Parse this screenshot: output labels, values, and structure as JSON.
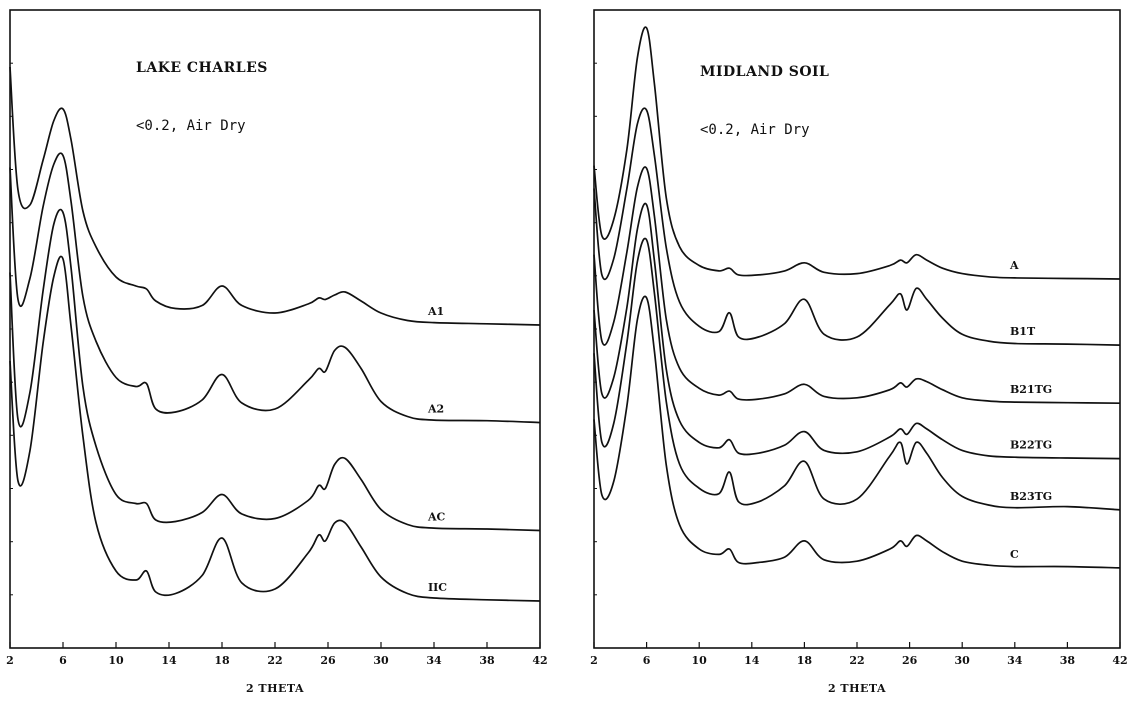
{
  "chart_data": [
    {
      "type": "line",
      "title": "LAKE CHARLES",
      "subtitle": "<0.2, Air Dry",
      "xlabel": "2 THETA",
      "ylabel": "",
      "xlim": [
        2,
        42
      ],
      "x_ticks": [
        2,
        6,
        10,
        14,
        18,
        22,
        26,
        30,
        34,
        38,
        42
      ],
      "grid": false,
      "y_units": "relative intensity",
      "series": [
        {
          "name": "A1",
          "baseline": 0.0,
          "x": [
            2,
            2.6,
            3.5,
            4.5,
            5.3,
            6.0,
            6.6,
            7.5,
            8.5,
            10,
            11.5,
            12.3,
            13,
            14.5,
            16.5,
            18,
            19.5,
            22,
            24.5,
            25.3,
            25.8,
            26.5,
            27.3,
            28.5,
            30,
            32,
            34,
            38,
            42
          ],
          "y": [
            0.86,
            0.45,
            0.4,
            0.55,
            0.68,
            0.72,
            0.62,
            0.38,
            0.26,
            0.16,
            0.13,
            0.12,
            0.08,
            0.055,
            0.065,
            0.13,
            0.065,
            0.04,
            0.07,
            0.09,
            0.085,
            0.1,
            0.11,
            0.08,
            0.04,
            0.015,
            0.008,
            0.004,
            0.0
          ]
        },
        {
          "name": "A2",
          "baseline": -0.325,
          "x": [
            2,
            2.6,
            3.5,
            4.5,
            5.3,
            6.0,
            6.6,
            7.5,
            8.5,
            10,
            11.5,
            12.3,
            13,
            14.5,
            16.5,
            18,
            19.5,
            22,
            24.5,
            25.3,
            25.8,
            26.5,
            27.3,
            28.5,
            30,
            32,
            34,
            38,
            42
          ],
          "y": [
            0.85,
            0.41,
            0.48,
            0.72,
            0.86,
            0.89,
            0.74,
            0.42,
            0.27,
            0.15,
            0.12,
            0.13,
            0.045,
            0.035,
            0.075,
            0.16,
            0.065,
            0.045,
            0.14,
            0.18,
            0.17,
            0.24,
            0.25,
            0.18,
            0.07,
            0.02,
            0.008,
            0.006,
            0.0
          ]
        },
        {
          "name": "AC",
          "baseline": -0.685,
          "x": [
            2,
            2.6,
            3.5,
            4.5,
            5.3,
            6.0,
            6.6,
            7.5,
            8.5,
            10,
            11.5,
            12.3,
            13,
            14.5,
            16.5,
            18,
            19.5,
            22,
            24.5,
            25.3,
            25.8,
            26.5,
            27.3,
            28.5,
            30,
            32,
            34,
            38,
            42
          ],
          "y": [
            0.86,
            0.37,
            0.46,
            0.8,
            1.02,
            1.06,
            0.88,
            0.48,
            0.28,
            0.12,
            0.09,
            0.09,
            0.035,
            0.03,
            0.06,
            0.12,
            0.055,
            0.04,
            0.1,
            0.15,
            0.14,
            0.22,
            0.24,
            0.17,
            0.07,
            0.02,
            0.008,
            0.005,
            0.0
          ]
        },
        {
          "name": "IIC",
          "baseline": -0.92,
          "x": [
            2,
            2.6,
            3.5,
            4.5,
            5.3,
            6.0,
            6.6,
            7.5,
            8.5,
            10,
            11.5,
            12.3,
            13,
            14.5,
            16.5,
            18,
            19.5,
            22,
            24.5,
            25.3,
            25.8,
            26.5,
            27.3,
            28.5,
            30,
            32,
            34,
            38,
            42
          ],
          "y": [
            0.8,
            0.4,
            0.5,
            0.86,
            1.08,
            1.14,
            0.92,
            0.55,
            0.26,
            0.1,
            0.07,
            0.1,
            0.03,
            0.025,
            0.085,
            0.21,
            0.06,
            0.04,
            0.16,
            0.22,
            0.2,
            0.26,
            0.26,
            0.18,
            0.08,
            0.025,
            0.01,
            0.004,
            0.0
          ]
        }
      ]
    },
    {
      "type": "line",
      "title": "MIDLAND SOIL",
      "subtitle": "<0.2, Air Dry",
      "xlabel": "2 THETA",
      "ylabel": "",
      "xlim": [
        2,
        42
      ],
      "x_ticks": [
        2,
        6,
        10,
        14,
        18,
        22,
        26,
        30,
        34,
        38,
        42
      ],
      "grid": false,
      "y_units": "relative intensity",
      "series": [
        {
          "name": "A",
          "baseline": 0.0,
          "x": [
            2,
            2.6,
            3.5,
            4.5,
            5.3,
            6.0,
            6.6,
            7.5,
            8.5,
            10,
            11.5,
            12.3,
            13,
            14.5,
            16.5,
            18,
            19.5,
            22,
            24.5,
            25.3,
            25.8,
            26.5,
            27.3,
            28.5,
            30,
            32,
            34,
            38,
            42
          ],
          "y": [
            0.42,
            0.16,
            0.22,
            0.48,
            0.82,
            0.93,
            0.72,
            0.3,
            0.12,
            0.05,
            0.03,
            0.04,
            0.015,
            0.015,
            0.03,
            0.06,
            0.025,
            0.02,
            0.05,
            0.07,
            0.06,
            0.09,
            0.07,
            0.04,
            0.02,
            0.008,
            0.004,
            0.002,
            0.0
          ]
        },
        {
          "name": "B1T",
          "baseline": -0.245,
          "x": [
            2,
            2.6,
            3.5,
            4.5,
            5.3,
            6.0,
            6.6,
            7.5,
            8.5,
            10,
            11.5,
            12.3,
            13,
            14.5,
            16.5,
            18,
            19.5,
            22,
            24.5,
            25.3,
            25.8,
            26.5,
            27.3,
            28.5,
            30,
            32,
            34,
            38,
            42
          ],
          "y": [
            0.58,
            0.26,
            0.32,
            0.58,
            0.82,
            0.87,
            0.7,
            0.36,
            0.16,
            0.07,
            0.05,
            0.12,
            0.03,
            0.03,
            0.08,
            0.17,
            0.04,
            0.03,
            0.15,
            0.19,
            0.13,
            0.21,
            0.17,
            0.1,
            0.04,
            0.015,
            0.006,
            0.004,
            0.0
          ]
        },
        {
          "name": "B21TG",
          "baseline": -0.46,
          "x": [
            2,
            2.6,
            3.5,
            4.5,
            5.3,
            6.0,
            6.6,
            7.5,
            8.5,
            10,
            11.5,
            12.3,
            13,
            14.5,
            16.5,
            18,
            19.5,
            22,
            24.5,
            25.3,
            25.8,
            26.5,
            27.3,
            28.5,
            30,
            32,
            34,
            38,
            42
          ],
          "y": [
            0.55,
            0.23,
            0.3,
            0.56,
            0.8,
            0.87,
            0.69,
            0.31,
            0.13,
            0.055,
            0.03,
            0.045,
            0.015,
            0.015,
            0.035,
            0.07,
            0.025,
            0.02,
            0.05,
            0.075,
            0.06,
            0.09,
            0.08,
            0.05,
            0.02,
            0.008,
            0.004,
            0.002,
            0.0
          ]
        },
        {
          "name": "B22TG",
          "baseline": -0.665,
          "x": [
            2,
            2.6,
            3.5,
            4.5,
            5.3,
            6.0,
            6.6,
            7.5,
            8.5,
            10,
            11.5,
            12.3,
            13,
            14.5,
            16.5,
            18,
            19.5,
            22,
            24.5,
            25.3,
            25.8,
            26.5,
            27.3,
            28.5,
            30,
            32,
            34,
            38,
            42
          ],
          "y": [
            0.55,
            0.24,
            0.3,
            0.56,
            0.85,
            0.94,
            0.73,
            0.33,
            0.14,
            0.06,
            0.04,
            0.07,
            0.02,
            0.02,
            0.05,
            0.1,
            0.03,
            0.025,
            0.08,
            0.11,
            0.09,
            0.13,
            0.11,
            0.07,
            0.03,
            0.01,
            0.005,
            0.002,
            0.0
          ]
        },
        {
          "name": "B23TG",
          "baseline": -0.855,
          "x": [
            2,
            2.6,
            3.5,
            4.5,
            5.3,
            6.0,
            6.6,
            7.5,
            8.5,
            10,
            11.5,
            12.3,
            13,
            14.5,
            16.5,
            18,
            19.5,
            22,
            24.5,
            25.3,
            25.8,
            26.5,
            27.3,
            28.5,
            30,
            32,
            34,
            38,
            42
          ],
          "y": [
            0.58,
            0.25,
            0.32,
            0.62,
            0.92,
            1.0,
            0.8,
            0.4,
            0.17,
            0.08,
            0.06,
            0.14,
            0.03,
            0.03,
            0.09,
            0.18,
            0.04,
            0.04,
            0.2,
            0.25,
            0.17,
            0.25,
            0.21,
            0.12,
            0.05,
            0.018,
            0.008,
            0.012,
            0.0
          ]
        },
        {
          "name": "C",
          "baseline": -1.07,
          "x": [
            2,
            2.6,
            3.5,
            4.5,
            5.3,
            6.0,
            6.6,
            7.5,
            8.5,
            10,
            11.5,
            12.3,
            13,
            14.5,
            16.5,
            18,
            19.5,
            22,
            24.5,
            25.3,
            25.8,
            26.5,
            27.3,
            28.5,
            30,
            32,
            34,
            38,
            42
          ],
          "y": [
            0.55,
            0.27,
            0.32,
            0.6,
            0.92,
            1.0,
            0.8,
            0.38,
            0.16,
            0.07,
            0.05,
            0.07,
            0.02,
            0.02,
            0.04,
            0.1,
            0.03,
            0.025,
            0.07,
            0.1,
            0.08,
            0.12,
            0.1,
            0.06,
            0.025,
            0.01,
            0.005,
            0.005,
            0.0
          ]
        }
      ]
    }
  ]
}
